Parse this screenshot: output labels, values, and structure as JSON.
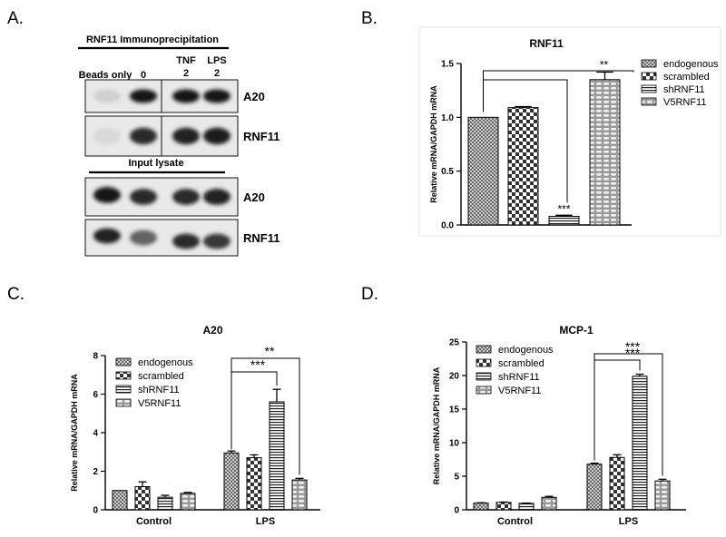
{
  "panels": [
    {
      "letter": "A."
    },
    {
      "letter": "B."
    },
    {
      "letter": "C."
    },
    {
      "letter": "D."
    }
  ],
  "blot": {
    "ip_title": "RNF11 Immunoprecipitation",
    "lane_labels": [
      "Beads only",
      "0",
      "TNF\n2",
      "LPS\n2"
    ],
    "input_title": "Input lysate",
    "bands": [
      {
        "label": "A20",
        "section": "ip",
        "intensities": [
          0.12,
          0.95,
          0.95,
          0.95
        ]
      },
      {
        "label": "RNF11",
        "section": "ip",
        "intensities": [
          0.08,
          0.85,
          0.9,
          0.92
        ]
      },
      {
        "label": "A20",
        "section": "input",
        "intensities": [
          0.95,
          0.85,
          0.85,
          0.9
        ]
      },
      {
        "label": "RNF11",
        "section": "input",
        "intensities": [
          0.9,
          0.6,
          0.85,
          0.8
        ]
      }
    ]
  },
  "legend_labels": [
    "endogenous",
    "scrambled",
    "shRNF11",
    "V5RNF11"
  ],
  "fill_patterns": [
    "checker-small",
    "checker-large",
    "hstripes",
    "pill"
  ],
  "chart_data": [
    {
      "type": "bar",
      "title": "RNF11",
      "ylabel": "Relative mRNA/GAPDH mRNA",
      "xlabel": "",
      "categories": [
        "endogenous",
        "scrambled",
        "shRNF11",
        "V5RNF11"
      ],
      "values": [
        1.0,
        1.09,
        0.08,
        1.35
      ],
      "errors": [
        0.0,
        0.01,
        0.01,
        0.07
      ],
      "ylim": [
        0,
        1.5
      ],
      "yticks": [
        "0.0",
        "0.5",
        "1.0",
        "1.5"
      ],
      "significance": [
        {
          "text": "***",
          "from": 0,
          "to": 2
        },
        {
          "text": "**",
          "from": 0,
          "to": 3
        }
      ],
      "legend": "right",
      "grid": false
    },
    {
      "type": "bar",
      "title": "A20",
      "ylabel": "Relative mRNA/GAPDH mRNA",
      "xlabel": "",
      "categories": [
        "Control",
        "LPS"
      ],
      "series": [
        {
          "name": "endogenous",
          "values": [
            1.0,
            2.95
          ],
          "errors": [
            0.0,
            0.1
          ]
        },
        {
          "name": "scrambled",
          "values": [
            1.2,
            2.7
          ],
          "errors": [
            0.25,
            0.15
          ]
        },
        {
          "name": "shRNF11",
          "values": [
            0.65,
            5.6
          ],
          "errors": [
            0.1,
            0.65
          ]
        },
        {
          "name": "V5RNF11",
          "values": [
            0.85,
            1.55
          ],
          "errors": [
            0.05,
            0.08
          ]
        }
      ],
      "ylim": [
        0,
        8
      ],
      "yticks": [
        "0",
        "2",
        "4",
        "6",
        "8"
      ],
      "significance": [
        {
          "text": "***",
          "group": 1,
          "from": 0,
          "to": 2
        },
        {
          "text": "**",
          "group": 1,
          "from": 0,
          "to": 3
        }
      ],
      "legend": "top-left",
      "grid": false
    },
    {
      "type": "bar",
      "title": "MCP-1",
      "ylabel": "Relative mRNA/GAPDH mRNA",
      "xlabel": "",
      "categories": [
        "Control",
        "LPS"
      ],
      "series": [
        {
          "name": "endogenous",
          "values": [
            1.0,
            6.8
          ],
          "errors": [
            0.05,
            0.15
          ]
        },
        {
          "name": "scrambled",
          "values": [
            1.1,
            7.8
          ],
          "errors": [
            0.05,
            0.4
          ]
        },
        {
          "name": "shRNF11",
          "values": [
            0.95,
            19.9
          ],
          "errors": [
            0.05,
            0.3
          ]
        },
        {
          "name": "V5RNF11",
          "values": [
            1.85,
            4.3
          ],
          "errors": [
            0.15,
            0.25
          ]
        }
      ],
      "ylim": [
        0,
        25
      ],
      "yticks": [
        "0",
        "5",
        "10",
        "15",
        "20",
        "25"
      ],
      "significance": [
        {
          "text": "***",
          "group": 1,
          "from": 0,
          "to": 2
        },
        {
          "text": "***",
          "group": 1,
          "from": 0,
          "to": 3
        }
      ],
      "legend": "top-left",
      "grid": false
    }
  ]
}
